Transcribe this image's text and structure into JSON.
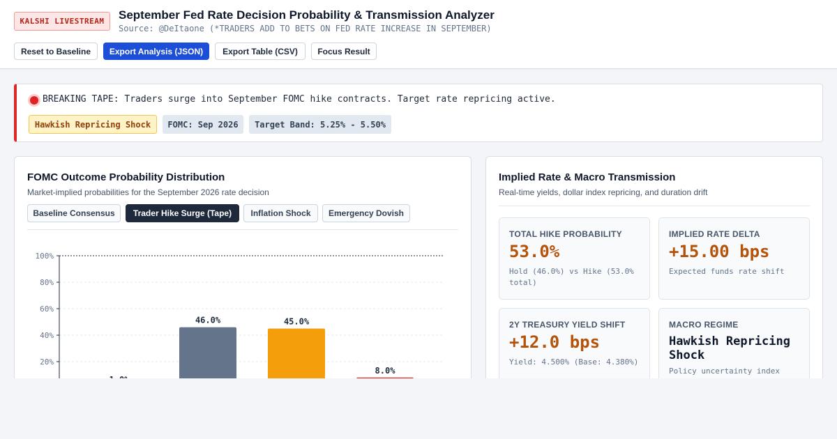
{
  "header": {
    "badge": "KALSHI LIVESTREAM",
    "title": "September Fed Rate Decision Probability & Transmission Analyzer",
    "source": "Source: @DeItaone (*TRADERS ADD TO BETS ON FED RATE INCREASE IN SEPTEMBER)",
    "buttons": {
      "reset": "Reset to Baseline",
      "export_json": "Export Analysis (JSON)",
      "export_csv": "Export Table (CSV)",
      "focus": "Focus Result"
    }
  },
  "tape": {
    "text": "BREAKING TAPE: Traders surge into September FOMC hike contracts. Target rate repricing active.",
    "chips": {
      "regime": "Hawkish Repricing Shock",
      "fomc": "FOMC: Sep 2026",
      "band": "Target Band: 5.25% - 5.50%"
    }
  },
  "distribution": {
    "title": "FOMC Outcome Probability Distribution",
    "subtitle": "Market-implied probabilities for the September 2026 rate decision",
    "scenarios": [
      "Baseline Consensus",
      "Trader Hike Surge (Tape)",
      "Inflation Shock",
      "Emergency Dovish"
    ],
    "active_scenario": "Trader Hike Surge (Tape)"
  },
  "chart_data": {
    "type": "bar",
    "values": [
      1.0,
      46.0,
      45.0,
      8.0
    ],
    "value_labels": [
      "1.0%",
      "46.0%",
      "45.0%",
      "8.0%"
    ],
    "colors": [
      "#16a34a",
      "#64748b",
      "#f59e0b",
      "#dc2626"
    ],
    "yticks": [
      "20%",
      "40%",
      "60%",
      "80%",
      "100%"
    ],
    "ylim": [
      0,
      100
    ],
    "grid": true
  },
  "transmission": {
    "title": "Implied Rate & Macro Transmission",
    "subtitle": "Real-time yields, dollar index repricing, and duration drift",
    "metrics": {
      "hike_prob": {
        "label": "TOTAL HIKE PROBABILITY",
        "value": "53.0%",
        "note": "Hold (46.0%) vs Hike (53.0% total)"
      },
      "rate_delta": {
        "label": "IMPLIED RATE DELTA",
        "value": "+15.00 bps",
        "note": "Expected funds rate shift"
      },
      "yield_shift": {
        "label": "2Y TREASURY YIELD SHIFT",
        "value": "+12.0 bps",
        "note": "Yield: 4.500% (Base: 4.380%)"
      },
      "regime": {
        "label": "MACRO REGIME",
        "value": "Hawkish Repricing Shock",
        "note": "Policy uncertainty index"
      }
    }
  },
  "colors": {
    "accent": "#1d4ed8",
    "alert": "#dc2626",
    "value": "#b45309"
  }
}
